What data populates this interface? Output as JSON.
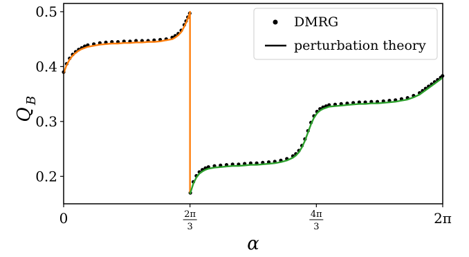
{
  "chart_data": {
    "type": "line",
    "xlabel": "α",
    "ylabel_main": "Q",
    "ylabel_sub": "B",
    "xlim": [
      0,
      6.2832
    ],
    "ylim": [
      0.15,
      0.515
    ],
    "yticks": [
      {
        "value": 0.2,
        "label": "0.2"
      },
      {
        "value": 0.3,
        "label": "0.3"
      },
      {
        "value": 0.4,
        "label": "0.4"
      },
      {
        "value": 0.5,
        "label": "0.5"
      }
    ],
    "xticks": [
      {
        "value": 0,
        "kind": "plain",
        "label": "0"
      },
      {
        "value": 2.0944,
        "kind": "frac",
        "num": "2π",
        "den": "3"
      },
      {
        "value": 4.1888,
        "kind": "frac",
        "num": "4π",
        "den": "3"
      },
      {
        "value": 6.2832,
        "kind": "plain",
        "label": "2π"
      }
    ],
    "legend": {
      "position": "upper-right",
      "entries": [
        {
          "label": "DMRG",
          "marker": "dot"
        },
        {
          "label": "perturbation theory",
          "marker": "line"
        }
      ]
    },
    "colors": {
      "dmrg": "#000000",
      "branch1": "#ff7f0e",
      "branch2": "#2ca02c",
      "axis": "#000000"
    },
    "series": [
      {
        "name": "DMRG",
        "style": "points",
        "x": [
          0,
          0.05,
          0.1,
          0.15,
          0.2,
          0.25,
          0.3,
          0.35,
          0.4,
          0.5,
          0.6,
          0.7,
          0.8,
          0.9,
          1.0,
          1.1,
          1.2,
          1.3,
          1.4,
          1.5,
          1.6,
          1.7,
          1.8,
          1.85,
          1.9,
          1.95,
          2.0,
          2.03,
          2.06,
          2.09,
          2.1,
          2.15,
          2.2,
          2.25,
          2.3,
          2.35,
          2.4,
          2.5,
          2.6,
          2.7,
          2.8,
          2.9,
          3.0,
          3.1,
          3.2,
          3.3,
          3.4,
          3.5,
          3.6,
          3.7,
          3.8,
          3.85,
          3.9,
          3.95,
          4.0,
          4.05,
          4.1,
          4.15,
          4.2,
          4.25,
          4.3,
          4.35,
          4.4,
          4.5,
          4.6,
          4.7,
          4.8,
          4.9,
          5.0,
          5.1,
          5.2,
          5.3,
          5.4,
          5.5,
          5.6,
          5.7,
          5.8,
          5.9,
          5.95,
          6.0,
          6.05,
          6.1,
          6.15,
          6.2,
          6.25,
          6.28
        ],
        "y": [
          0.39,
          0.405,
          0.415,
          0.422,
          0.427,
          0.431,
          0.434,
          0.437,
          0.439,
          0.441,
          0.443,
          0.444,
          0.445,
          0.445,
          0.446,
          0.446,
          0.447,
          0.447,
          0.447,
          0.448,
          0.449,
          0.45,
          0.453,
          0.456,
          0.46,
          0.466,
          0.476,
          0.483,
          0.49,
          0.497,
          0.17,
          0.19,
          0.201,
          0.208,
          0.212,
          0.215,
          0.217,
          0.219,
          0.22,
          0.221,
          0.222,
          0.222,
          0.223,
          0.224,
          0.224,
          0.225,
          0.226,
          0.227,
          0.229,
          0.232,
          0.237,
          0.241,
          0.247,
          0.256,
          0.268,
          0.283,
          0.298,
          0.31,
          0.318,
          0.323,
          0.326,
          0.328,
          0.33,
          0.331,
          0.332,
          0.333,
          0.334,
          0.335,
          0.335,
          0.336,
          0.336,
          0.337,
          0.338,
          0.339,
          0.341,
          0.343,
          0.347,
          0.352,
          0.356,
          0.36,
          0.364,
          0.368,
          0.372,
          0.376,
          0.38,
          0.383
        ]
      },
      {
        "name": "perturbation theory",
        "style": "line",
        "colorKey": "branch1",
        "x": [
          0,
          0.05,
          0.1,
          0.15,
          0.2,
          0.25,
          0.3,
          0.35,
          0.4,
          0.5,
          0.6,
          0.7,
          0.8,
          0.9,
          1.0,
          1.1,
          1.2,
          1.3,
          1.4,
          1.5,
          1.6,
          1.7,
          1.8,
          1.85,
          1.9,
          1.95,
          2.0,
          2.03,
          2.06,
          2.09,
          2.0944,
          2.0944
        ],
        "y": [
          0.388,
          0.403,
          0.413,
          0.42,
          0.425,
          0.429,
          0.432,
          0.434,
          0.436,
          0.438,
          0.44,
          0.441,
          0.442,
          0.442,
          0.443,
          0.443,
          0.444,
          0.444,
          0.445,
          0.445,
          0.446,
          0.448,
          0.45,
          0.453,
          0.457,
          0.463,
          0.473,
          0.48,
          0.488,
          0.497,
          0.5,
          0.17
        ]
      },
      {
        "name": "perturbation theory",
        "style": "line",
        "colorKey": "branch2",
        "x": [
          2.0944,
          2.15,
          2.2,
          2.25,
          2.3,
          2.35,
          2.4,
          2.5,
          2.6,
          2.7,
          2.8,
          2.9,
          3.0,
          3.1,
          3.2,
          3.3,
          3.4,
          3.5,
          3.6,
          3.7,
          3.8,
          3.85,
          3.9,
          3.95,
          4.0,
          4.05,
          4.1,
          4.15,
          4.2,
          4.25,
          4.3,
          4.35,
          4.4,
          4.5,
          4.6,
          4.7,
          4.8,
          4.9,
          5.0,
          5.1,
          5.2,
          5.3,
          5.4,
          5.5,
          5.6,
          5.7,
          5.8,
          5.9,
          5.95,
          6.0,
          6.05,
          6.1,
          6.15,
          6.2,
          6.25,
          6.28
        ],
        "y": [
          0.168,
          0.187,
          0.198,
          0.205,
          0.209,
          0.212,
          0.214,
          0.216,
          0.217,
          0.218,
          0.219,
          0.219,
          0.22,
          0.221,
          0.221,
          0.222,
          0.223,
          0.224,
          0.226,
          0.229,
          0.234,
          0.238,
          0.244,
          0.253,
          0.265,
          0.28,
          0.295,
          0.307,
          0.315,
          0.32,
          0.323,
          0.325,
          0.327,
          0.328,
          0.329,
          0.33,
          0.331,
          0.332,
          0.332,
          0.333,
          0.333,
          0.334,
          0.335,
          0.336,
          0.338,
          0.34,
          0.344,
          0.349,
          0.353,
          0.357,
          0.361,
          0.365,
          0.369,
          0.373,
          0.377,
          0.38
        ]
      }
    ]
  }
}
